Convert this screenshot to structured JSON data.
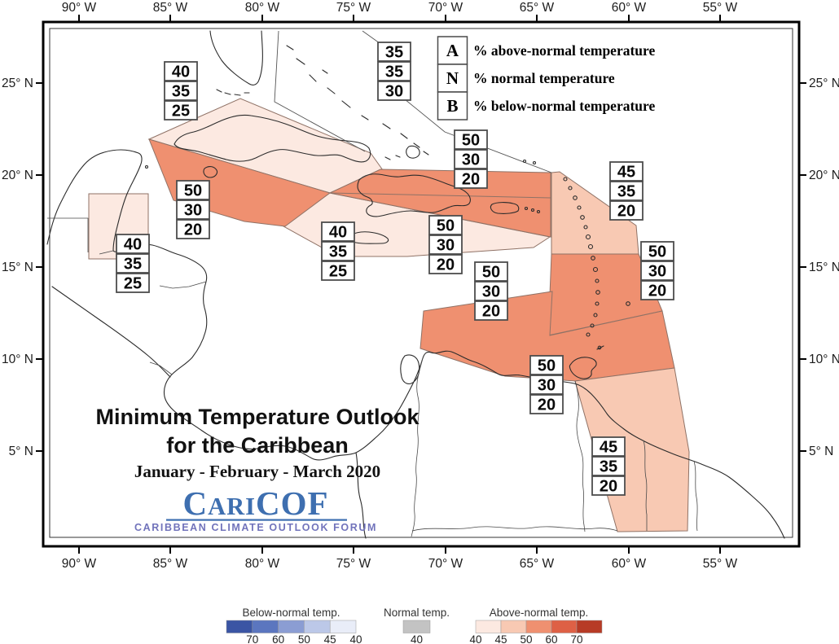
{
  "map": {
    "title_line1": "Minimum Temperature Outlook",
    "title_line2": "for the Caribbean",
    "period": "January - February - March 2020",
    "logo": {
      "part1": "C",
      "part2": "ARI",
      "part3": "COF",
      "tagline": "CARIBBEAN CLIMATE OUTLOOK FORUM"
    }
  },
  "anb_legend": {
    "items": [
      {
        "key": "A",
        "label": "% above-normal temperature"
      },
      {
        "key": "N",
        "label": "% normal temperature"
      },
      {
        "key": "B",
        "label": "% below-normal temperature"
      }
    ]
  },
  "axes": {
    "longitude_labels": [
      "90° W",
      "85° W",
      "80° W",
      "75° W",
      "70° W",
      "65° W",
      "60° W",
      "55° W"
    ],
    "latitude_labels": [
      "25° N",
      "20° N",
      "15° N",
      "10° N",
      "5° N"
    ]
  },
  "outlook_regions": [
    {
      "id": "cuba",
      "values": [
        "40",
        "35",
        "25"
      ]
    },
    {
      "id": "bahamas",
      "values": [
        "35",
        "35",
        "30"
      ]
    },
    {
      "id": "western-caribbean",
      "values": [
        "50",
        "30",
        "20"
      ]
    },
    {
      "id": "jamaica",
      "values": [
        "40",
        "35",
        "25"
      ]
    },
    {
      "id": "hispaniola-north",
      "values": [
        "50",
        "30",
        "20"
      ]
    },
    {
      "id": "hispaniola-south",
      "values": [
        "50",
        "30",
        "20"
      ]
    },
    {
      "id": "leeward-islands",
      "values": [
        "45",
        "35",
        "20"
      ]
    },
    {
      "id": "windward-islands",
      "values": [
        "50",
        "30",
        "20"
      ]
    },
    {
      "id": "southern-caribbean",
      "values": [
        "50",
        "30",
        "20"
      ]
    },
    {
      "id": "trinidad",
      "values": [
        "50",
        "30",
        "20"
      ]
    },
    {
      "id": "guianas",
      "values": [
        "45",
        "35",
        "20"
      ]
    },
    {
      "id": "belize",
      "values": [
        "40",
        "35",
        "25"
      ]
    }
  ],
  "color_legend": {
    "below": {
      "label": "Below-normal temp.",
      "tick_labels": [
        "70",
        "60",
        "50",
        "45",
        "40"
      ],
      "colors": [
        "#3b55a4",
        "#5b76bf",
        "#8b9dd3",
        "#bcc8e8",
        "#e9edf8"
      ]
    },
    "normal": {
      "label": "Normal temp.",
      "tick_labels": [
        "40"
      ],
      "colors": [
        "#c3c3c3"
      ]
    },
    "above": {
      "label": "Above-normal temp.",
      "tick_labels": [
        "40",
        "45",
        "50",
        "60",
        "70"
      ],
      "colors": [
        "#fce9e1",
        "#f8c9b3",
        "#ef9070",
        "#de6045",
        "#b73b26"
      ]
    }
  },
  "colors": {
    "above_40": "#fce9e1",
    "above_45": "#f8c9b3",
    "above_50": "#ef9070",
    "region_border": "#8f7266",
    "coastline": "#2b2b2b",
    "frame": "#000000",
    "logo_blue": "#3e6fb0",
    "logo_purple": "#7173bb"
  }
}
